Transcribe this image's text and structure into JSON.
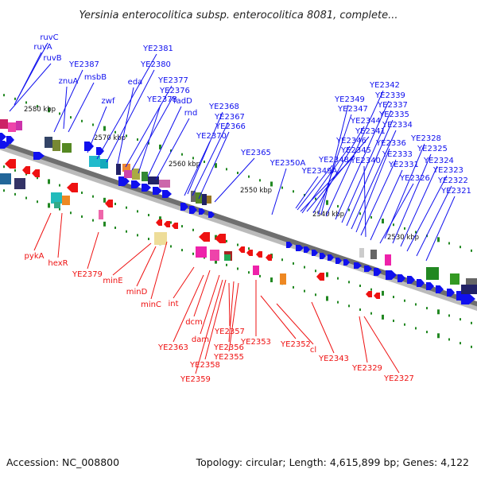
{
  "title": "Yersinia enterocolitica subsp. enterocolitica 8081, complete...",
  "accession": "Accession: NC_008800",
  "summary": "Topology: circular; Length: 4,615,899 bp; Genes: 4,122",
  "colors": {
    "forward": "#1010ee",
    "reverse": "#ee1111",
    "backbone": "#888888",
    "tick": "#228822"
  },
  "scale_labels": [
    "2580 kbp",
    "2570 kbp",
    "2560 kbp",
    "2550 kbp",
    "2540 kbp",
    "2530 kbp"
  ],
  "forward_genes": [
    "ruvC",
    "ruvA",
    "ruvB",
    "YE2387",
    "znuA",
    "msbB",
    "zwf",
    "YE2381",
    "YE2380",
    "eda",
    "YE2377",
    "YE2376",
    "YE2378",
    "fadD",
    "rnd",
    "YE2368",
    "YE2367",
    "YE2366",
    "YE2370",
    "YE2365",
    "YE2350A",
    "YE2342",
    "YE2349",
    "YE2339",
    "YE2347",
    "YE2337",
    "YE2335",
    "YE2344",
    "YE2334",
    "YE2341",
    "YE2346",
    "YE2336",
    "YE2345",
    "YE2328",
    "YE2333",
    "YE2325",
    "YE2348",
    "YE2340",
    "YE2331",
    "YE2324",
    "YE2349A",
    "YE2323",
    "YE2326",
    "YE2322",
    "YE2321"
  ],
  "reverse_genes": [
    "pykA",
    "hexR",
    "YE2379",
    "minE",
    "minD",
    "minC",
    "int",
    "dcm",
    "YE2363",
    "dam",
    "YE2357",
    "YE2356",
    "YE2353",
    "YE2355",
    "YE2358",
    "YE2359",
    "YE2352",
    "cl",
    "YE2343",
    "YE2329",
    "YE2327"
  ]
}
